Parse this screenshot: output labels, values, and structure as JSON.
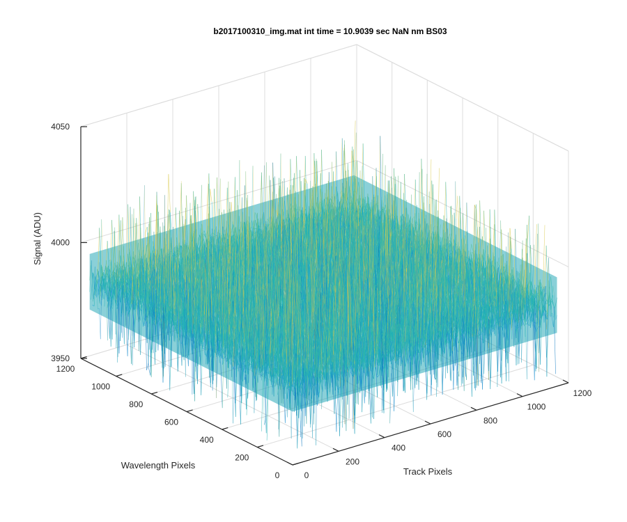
{
  "chart_data": {
    "type": "surface",
    "title": "b2017100310_img.mat int time = 10.9039 sec  NaN nm BS03",
    "xlabel": "Track Pixels",
    "ylabel": "Wavelength Pixels",
    "zlabel": "Signal (ADU)",
    "xlim": [
      0,
      1200
    ],
    "ylim": [
      0,
      1200
    ],
    "zlim": [
      3950,
      4050
    ],
    "x_ticks": [
      "0",
      "200",
      "400",
      "600",
      "800",
      "1000",
      "1200"
    ],
    "y_ticks": [
      "0",
      "200",
      "400",
      "600",
      "800",
      "1000",
      "1200"
    ],
    "z_ticks": [
      "3950",
      "4000",
      "4050"
    ],
    "x_extent": [
      0,
      1150
    ],
    "y_extent": [
      0,
      1150
    ],
    "z_mean": 3985,
    "z_noise_range": [
      3955,
      4030
    ],
    "colormap": [
      "#0072bd",
      "#1f9ad6",
      "#23b3b3",
      "#5ec09a",
      "#d8c84a"
    ],
    "grid": true
  }
}
